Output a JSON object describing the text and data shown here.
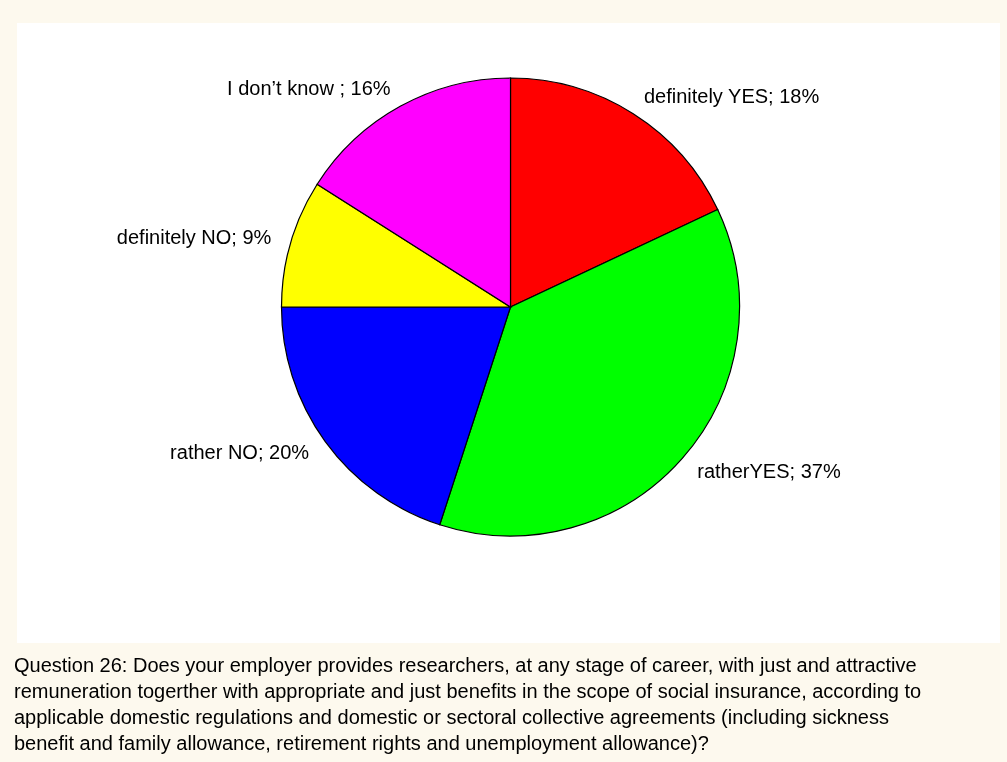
{
  "chart_data": {
    "type": "pie",
    "categories": [
      "definitely YES; 18%",
      "ratherYES; 37%",
      "rather NO; 20%",
      "definitely NO; 9%",
      "I don’t know ; 16%"
    ],
    "values": [
      18,
      37,
      20,
      9,
      16
    ],
    "colors": [
      "#ff0000",
      "#00ff00",
      "#0000ff",
      "#ffff00",
      "#ff00ff"
    ],
    "annotations": [
      "Question 26: Does your employer provides researchers, at any stage of career, with just and attractive\nremuneration togerther with appropriate and just benefits in the scope of social insurance, according to\napplicable domestic regulations and domestic or sectoral collective agreements   (including sickness\nbenefit and family allowance, retirement rights and unemployment allowance)?"
    ]
  }
}
